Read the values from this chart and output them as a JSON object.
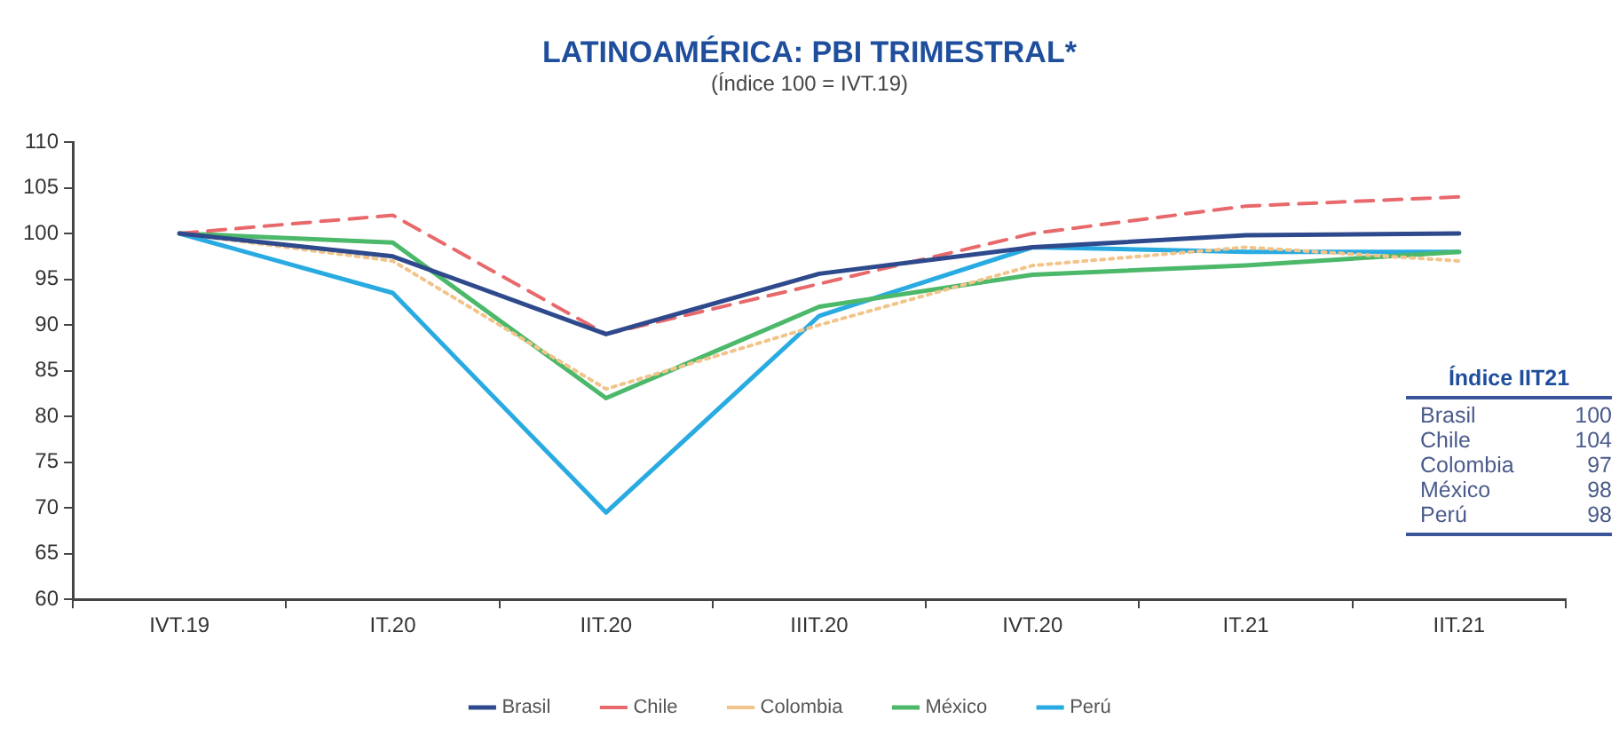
{
  "chart_data": {
    "type": "line",
    "title": "LATINOAMÉRICA: PBI TRIMESTRAL*",
    "subtitle": "(Índice 100 = IVT.19)",
    "categories": [
      "IVT.19",
      "IT.20",
      "IIT.20",
      "IIIT.20",
      "IVT.20",
      "IT.21",
      "IIT.21"
    ],
    "series": [
      {
        "name": "Brasil",
        "color": "#2e4a8c",
        "line_style": "solid",
        "values": [
          100,
          97.5,
          89,
          95.6,
          98.5,
          99.8,
          100
        ]
      },
      {
        "name": "Chile",
        "color": "#e8696b",
        "line_style": "dashed",
        "values": [
          100,
          102,
          89,
          94.5,
          100,
          103,
          104
        ]
      },
      {
        "name": "Colombia",
        "color": "#f2c48a",
        "line_style": "dotted",
        "values": [
          100,
          97,
          83,
          90,
          96.5,
          98.5,
          97
        ]
      },
      {
        "name": "México",
        "color": "#4cb86a",
        "line_style": "solid",
        "values": [
          100,
          99,
          82,
          92,
          95.5,
          96.5,
          98
        ]
      },
      {
        "name": "Perú",
        "color": "#29abe2",
        "line_style": "solid",
        "values": [
          100,
          93.5,
          69.5,
          91,
          98.5,
          98,
          98
        ]
      }
    ],
    "ylim": [
      60,
      110
    ],
    "yticks": [
      60,
      65,
      70,
      75,
      80,
      85,
      90,
      95,
      100,
      105,
      110
    ],
    "grid": false,
    "legend": "bottom",
    "marker": "none",
    "annotations": [
      "Índice IIT21",
      "Brasil 100",
      "Chile 104",
      "Colombia 97",
      "México 98",
      "Perú 98"
    ]
  }
}
